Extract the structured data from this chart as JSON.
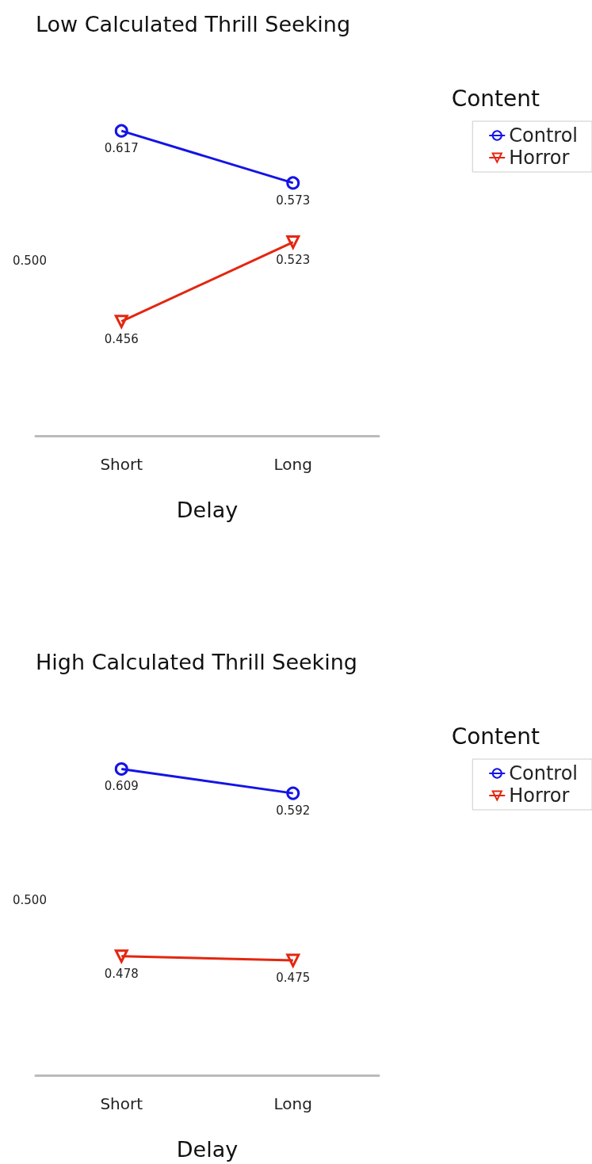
{
  "chart_data": [
    {
      "type": "line",
      "title": "Low Calculated Thrill Seeking",
      "xlabel": "Delay",
      "legend_title": "Content",
      "categories": [
        "Short",
        "Long"
      ],
      "series": [
        {
          "name": "Control",
          "color": "#1414e6",
          "values": [
            0.617,
            0.573
          ],
          "marker": "circle"
        },
        {
          "name": "Horror",
          "color": "#e4260f",
          "values": [
            0.456,
            0.523
          ],
          "marker": "triangle"
        }
      ],
      "annotations": [
        "0.500"
      ],
      "legend": "top right",
      "data_labels": true
    },
    {
      "type": "line",
      "title": "High Calculated Thrill Seeking",
      "xlabel": "Delay",
      "legend_title": "Content",
      "categories": [
        "Short",
        "Long"
      ],
      "series": [
        {
          "name": "Control",
          "color": "#1414e6",
          "values": [
            0.609,
            0.592
          ],
          "marker": "circle"
        },
        {
          "name": "Horror",
          "color": "#e4260f",
          "values": [
            0.478,
            0.475
          ],
          "marker": "triangle"
        }
      ],
      "annotations": [
        "0.500"
      ],
      "legend": "top right",
      "data_labels": true
    }
  ]
}
